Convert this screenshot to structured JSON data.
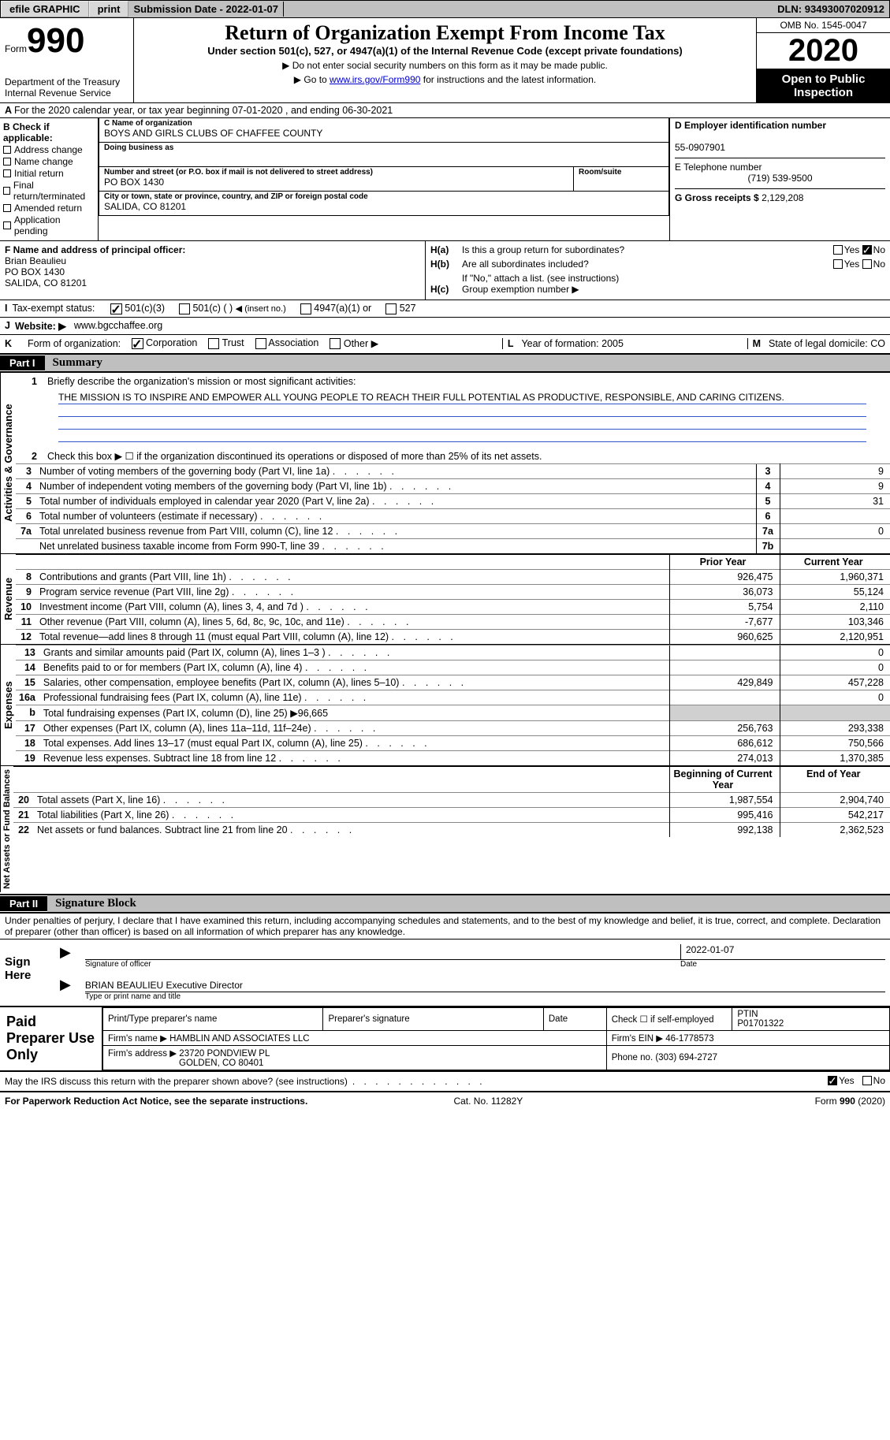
{
  "topbar": {
    "efile": "efile GRAPHIC",
    "print": "print",
    "sub_date_label": "Submission Date - ",
    "sub_date": "2022-01-07",
    "dln_label": "DLN: ",
    "dln": "93493007020912"
  },
  "header": {
    "form_prefix": "Form",
    "form_num": "990",
    "dept1": "Department of the Treasury",
    "dept2": "Internal Revenue Service",
    "title": "Return of Organization Exempt From Income Tax",
    "subtitle": "Under section 501(c), 527, or 4947(a)(1) of the Internal Revenue Code (except private foundations)",
    "instr1": "▶ Do not enter social security numbers on this form as it may be made public.",
    "instr2_pre": "▶ Go to ",
    "instr2_link": "www.irs.gov/Form990",
    "instr2_post": " for instructions and the latest information.",
    "omb": "OMB No. 1545-0047",
    "year": "2020",
    "inspect1": "Open to Public",
    "inspect2": "Inspection",
    "period": "For the 2020 calendar year, or tax year beginning 07-01-2020   , and ending 06-30-2021"
  },
  "secB": {
    "head": "B Check if applicable:",
    "items": [
      "Address change",
      "Name change",
      "Initial return",
      "Final return/terminated",
      "Amended return",
      "Application pending"
    ]
  },
  "secC": {
    "name_lbl": "C Name of organization",
    "name": "BOYS AND GIRLS CLUBS OF CHAFFEE COUNTY",
    "dba_lbl": "Doing business as",
    "street_lbl": "Number and street (or P.O. box if mail is not delivered to street address)",
    "room_lbl": "Room/suite",
    "street": "PO BOX 1430",
    "city_lbl": "City or town, state or province, country, and ZIP or foreign postal code",
    "city": "SALIDA, CO  81201"
  },
  "secD": {
    "ein_lbl": "D Employer identification number",
    "ein": "55-0907901",
    "tel_lbl": "E Telephone number",
    "tel": "(719) 539-9500",
    "gross_lbl": "G Gross receipts $",
    "gross": "2,129,208"
  },
  "secF": {
    "lbl": "F  Name and address of principal officer:",
    "name": "Brian Beaulieu",
    "addr1": "PO BOX 1430",
    "addr2": "SALIDA, CO  81201"
  },
  "secH": {
    "ha_lbl": "H(a)",
    "ha_q": "Is this a group return for subordinates?",
    "hb_lbl": "H(b)",
    "hb_q": "Are all subordinates included?",
    "hb_note": "If \"No,\" attach a list. (see instructions)",
    "hc_lbl": "H(c)",
    "hc_q": "Group exemption number ▶",
    "yes": "Yes",
    "no": "No"
  },
  "lineI": {
    "lbl": "I",
    "text": "Tax-exempt status:",
    "opt1": "501(c)(3)",
    "opt2": "501(c) (  )",
    "opt2_hint": "◀ (insert no.)",
    "opt3": "4947(a)(1) or",
    "opt4": "527"
  },
  "lineJ": {
    "lbl": "J",
    "text": "Website: ▶",
    "val": "www.bgcchaffee.org"
  },
  "lineK": {
    "lbl": "K",
    "text": "Form of organization:",
    "o1": "Corporation",
    "o2": "Trust",
    "o3": "Association",
    "o4": "Other ▶"
  },
  "lineLM": {
    "l_lbl": "L",
    "l_text": "Year of formation: 2005",
    "m_lbl": "M",
    "m_text": "State of legal domicile: CO"
  },
  "part1": {
    "num": "Part I",
    "title": "Summary"
  },
  "p1_1": {
    "num": "1",
    "text": "Briefly describe the organization's mission or most significant activities:",
    "mission": "THE MISSION IS TO INSPIRE AND EMPOWER ALL YOUNG PEOPLE TO REACH THEIR FULL POTENTIAL AS PRODUCTIVE, RESPONSIBLE, AND CARING CITIZENS."
  },
  "p1_2": {
    "num": "2",
    "text": "Check this box ▶ ☐  if the organization discontinued its operations or disposed of more than 25% of its net assets."
  },
  "govlines": [
    {
      "n": "3",
      "t": "Number of voting members of the governing body (Part VI, line 1a)",
      "k": "3",
      "v": "9"
    },
    {
      "n": "4",
      "t": "Number of independent voting members of the governing body (Part VI, line 1b)",
      "k": "4",
      "v": "9"
    },
    {
      "n": "5",
      "t": "Total number of individuals employed in calendar year 2020 (Part V, line 2a)",
      "k": "5",
      "v": "31"
    },
    {
      "n": "6",
      "t": "Total number of volunteers (estimate if necessary)",
      "k": "6",
      "v": ""
    },
    {
      "n": "7a",
      "t": "Total unrelated business revenue from Part VIII, column (C), line 12",
      "k": "7a",
      "v": "0"
    },
    {
      "n": "",
      "t": "Net unrelated business taxable income from Form 990-T, line 39",
      "k": "7b",
      "v": ""
    }
  ],
  "revhdr": {
    "py": "Prior Year",
    "cy": "Current Year"
  },
  "revlines": [
    {
      "n": "8",
      "t": "Contributions and grants (Part VIII, line 1h)",
      "p": "926,475",
      "c": "1,960,371"
    },
    {
      "n": "9",
      "t": "Program service revenue (Part VIII, line 2g)",
      "p": "36,073",
      "c": "55,124"
    },
    {
      "n": "10",
      "t": "Investment income (Part VIII, column (A), lines 3, 4, and 7d )",
      "p": "5,754",
      "c": "2,110"
    },
    {
      "n": "11",
      "t": "Other revenue (Part VIII, column (A), lines 5, 6d, 8c, 9c, 10c, and 11e)",
      "p": "-7,677",
      "c": "103,346"
    },
    {
      "n": "12",
      "t": "Total revenue—add lines 8 through 11 (must equal Part VIII, column (A), line 12)",
      "p": "960,625",
      "c": "2,120,951"
    }
  ],
  "explines": [
    {
      "n": "13",
      "t": "Grants and similar amounts paid (Part IX, column (A), lines 1–3 )",
      "p": "",
      "c": "0"
    },
    {
      "n": "14",
      "t": "Benefits paid to or for members (Part IX, column (A), line 4)",
      "p": "",
      "c": "0"
    },
    {
      "n": "15",
      "t": "Salaries, other compensation, employee benefits (Part IX, column (A), lines 5–10)",
      "p": "429,849",
      "c": "457,228"
    },
    {
      "n": "16a",
      "t": "Professional fundraising fees (Part IX, column (A), line 11e)",
      "p": "",
      "c": "0"
    },
    {
      "n": "b",
      "t": "Total fundraising expenses (Part IX, column (D), line 25) ▶96,665",
      "p": "grey",
      "c": "grey"
    },
    {
      "n": "17",
      "t": "Other expenses (Part IX, column (A), lines 11a–11d, 11f–24e)",
      "p": "256,763",
      "c": "293,338"
    },
    {
      "n": "18",
      "t": "Total expenses. Add lines 13–17 (must equal Part IX, column (A), line 25)",
      "p": "686,612",
      "c": "750,566"
    },
    {
      "n": "19",
      "t": "Revenue less expenses. Subtract line 18 from line 12",
      "p": "274,013",
      "c": "1,370,385"
    }
  ],
  "nahdr": {
    "b": "Beginning of Current Year",
    "e": "End of Year"
  },
  "nalines": [
    {
      "n": "20",
      "t": "Total assets (Part X, line 16)",
      "p": "1,987,554",
      "c": "2,904,740"
    },
    {
      "n": "21",
      "t": "Total liabilities (Part X, line 26)",
      "p": "995,416",
      "c": "542,217"
    },
    {
      "n": "22",
      "t": "Net assets or fund balances. Subtract line 21 from line 20",
      "p": "992,138",
      "c": "2,362,523"
    }
  ],
  "vlabels": {
    "gov": "Activities & Governance",
    "rev": "Revenue",
    "exp": "Expenses",
    "na": "Net Assets or Fund Balances"
  },
  "part2": {
    "num": "Part II",
    "title": "Signature Block"
  },
  "penalty": "Under penalties of perjury, I declare that I have examined this return, including accompanying schedules and statements, and to the best of my knowledge and belief, it is true, correct, and complete. Declaration of preparer (other than officer) is based on all information of which preparer has any knowledge.",
  "sign": {
    "here": "Sign Here",
    "sig_of": "Signature of officer",
    "date": "Date",
    "date_val": "2022-01-07",
    "name": "BRIAN BEAULIEU Executive Director",
    "name_lbl": "Type or print name and title"
  },
  "prep": {
    "title": "Paid Preparer Use Only",
    "h1": "Print/Type preparer's name",
    "h2": "Preparer's signature",
    "h3": "Date",
    "h4_pre": "Check ☐ if self-employed",
    "h5": "PTIN",
    "ptin": "P01701322",
    "firm_lbl": "Firm's name   ▶",
    "firm": "HAMBLIN AND ASSOCIATES LLC",
    "ein_lbl": "Firm's EIN ▶",
    "ein": "46-1778573",
    "addr_lbl": "Firm's address ▶",
    "addr1": "23720 PONDVIEW PL",
    "addr2": "GOLDEN, CO  80401",
    "phone_lbl": "Phone no.",
    "phone": "(303) 694-2727"
  },
  "discuss": {
    "q": "May the IRS discuss this return with the preparer shown above? (see instructions)",
    "yes": "Yes",
    "no": "No"
  },
  "footer": {
    "pra": "For Paperwork Reduction Act Notice, see the separate instructions.",
    "cat": "Cat. No. 11282Y",
    "form": "Form 990 (2020)"
  }
}
